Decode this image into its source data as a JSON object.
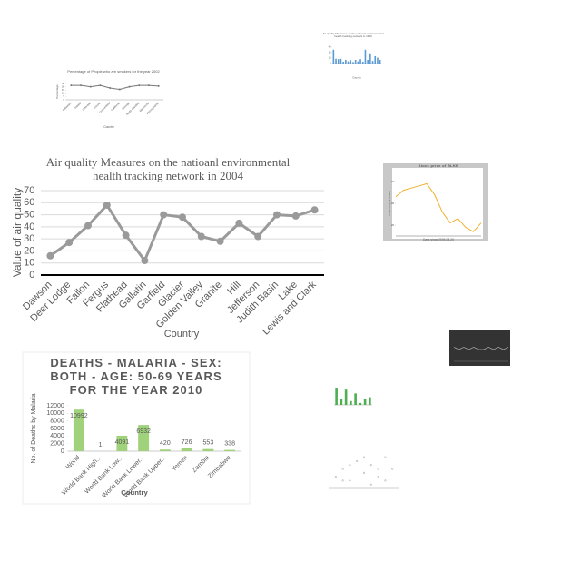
{
  "chart_data": [
    {
      "type": "line",
      "title": "Air quality Measures on the natioanl environmental health tracking network in 2004",
      "categories": [
        "Dawson",
        "Deer Lodge",
        "Fallon",
        "Fergus",
        "Flathead",
        "Gallatin",
        "Garfield",
        "Glacier",
        "Golden Valley",
        "Granite",
        "Hill",
        "Jefferson",
        "Judith Basin",
        "Lake",
        "Lewis and Clark"
      ],
      "values": [
        16,
        27,
        41,
        58,
        33,
        12,
        50,
        48,
        32,
        28,
        43,
        32,
        50,
        49,
        54
      ],
      "ylim": [
        0,
        70
      ],
      "yticks": [
        0,
        10,
        20,
        30,
        40,
        50,
        60,
        70
      ],
      "grid": true,
      "color": "#9a9a9a",
      "xlabel": "Country",
      "ylabel": "Value of air quality"
    },
    {
      "type": "bar",
      "title": "DEATHS - MALARIA - SEX: BOTH - AGE: 50-69 YEARS FOR THE YEAR 2010",
      "categories": [
        "World",
        "World Bank High...",
        "World Bank Low...",
        "World Bank Lower...",
        "World Bank Upper...",
        "Yemen",
        "Zambia",
        "Zimbabwe"
      ],
      "values": [
        10992,
        1,
        4091,
        6932,
        420,
        726,
        553,
        338
      ],
      "ylim": [
        0,
        12000
      ],
      "yticks": [
        0,
        2000,
        4000,
        6000,
        8000,
        10000,
        12000
      ],
      "grid": false,
      "data_labels": true,
      "color": "#9fd27a",
      "xlabel": "Country",
      "ylabel": "No. of Deaths by Malaria"
    },
    {
      "type": "line",
      "title": "Percentage of People who are smokers for the year 2002",
      "categories": [
        "Delaware",
        "Hawaii",
        "Colorado",
        "Arizona",
        "Connecticut",
        "California",
        "Georgia",
        "North Carolina",
        "Minnesota",
        "Pennsylvania"
      ],
      "values": [
        22,
        22,
        20,
        22,
        18,
        16,
        20,
        22,
        22,
        21
      ],
      "ylim": [
        0,
        25
      ],
      "yticks": [
        0,
        5,
        10,
        15,
        20,
        25
      ],
      "grid": false,
      "color": "#777777",
      "xlabel": "Country",
      "ylabel": "Percentage"
    },
    {
      "type": "bar",
      "title": "Air quality Measures on the national environmental health tracking network in 1996",
      "categories": [
        null,
        null,
        null,
        null,
        null,
        null,
        null,
        null,
        null,
        null,
        null,
        null,
        null,
        null,
        null,
        null,
        null,
        null,
        null,
        null
      ],
      "values": [
        38,
        13,
        12,
        13,
        5,
        10,
        6,
        9,
        4,
        10,
        6,
        12,
        5,
        38,
        10,
        28,
        7,
        20,
        16,
        10
      ],
      "ylim": [
        0,
        45
      ],
      "yticks": [
        0,
        15,
        30,
        45
      ],
      "grid": false,
      "color": "#5b9bd5",
      "xlabel": "Country"
    },
    {
      "type": "line",
      "title": "Stock price of BLKB",
      "x": [
        0,
        1,
        2,
        3,
        4,
        5,
        6,
        7,
        8,
        9,
        10,
        11
      ],
      "xlim": [
        0,
        11
      ],
      "values": [
        33,
        36,
        37,
        38,
        39,
        34,
        26,
        21,
        23,
        19,
        17,
        21
      ],
      "ylim": [
        15,
        45
      ],
      "yticks": [
        20,
        30,
        40
      ],
      "grid": false,
      "color": "#f0b030",
      "xlabel": "Days since 2005-08-20",
      "ylabel": "Price of stock (USD)"
    },
    {
      "type": "line",
      "x": [
        0,
        1,
        2,
        3,
        4,
        5,
        6,
        7,
        8,
        9,
        10,
        11
      ],
      "xlim": [
        0,
        11
      ],
      "values": [
        6,
        5,
        6,
        5,
        6,
        5,
        5,
        6,
        5,
        6,
        5,
        6
      ],
      "ylim": [
        0,
        10
      ],
      "grid": false,
      "color": "#aaaaaa"
    },
    {
      "type": "bar",
      "categories": [
        null,
        null,
        null,
        null,
        null,
        null,
        null,
        null
      ],
      "values": [
        9,
        3,
        8,
        2,
        6,
        1,
        3,
        4
      ],
      "ylim": [
        0,
        10
      ],
      "grid": false,
      "color": "#4caf50"
    },
    {
      "type": "scatter",
      "x": [
        1,
        2,
        3,
        4,
        5,
        6,
        7,
        8,
        9,
        2,
        5,
        7,
        8,
        3,
        6
      ],
      "xlim": [
        0,
        10
      ],
      "values": [
        3,
        5,
        2,
        7,
        4,
        6,
        3,
        8,
        5,
        2,
        8,
        5,
        2,
        6,
        1
      ],
      "ylim": [
        0,
        10
      ],
      "grid": false,
      "color": "#888888"
    }
  ]
}
